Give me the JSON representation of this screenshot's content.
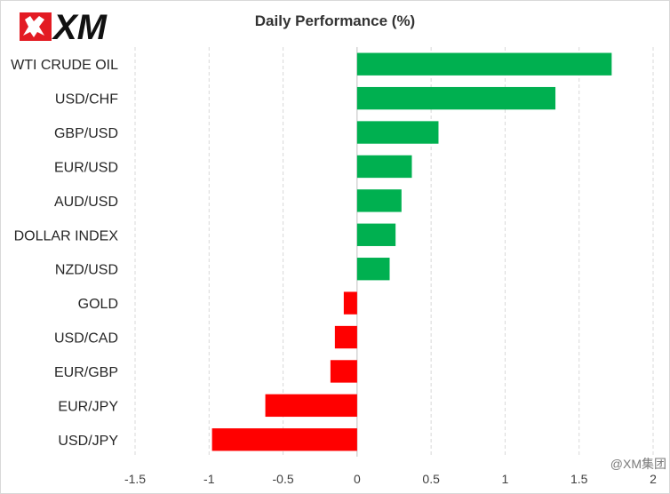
{
  "brand": {
    "logo_text": "XM",
    "colors": {
      "logo_red": "#e31b23",
      "logo_black": "#111111"
    }
  },
  "watermark": "@XM集团",
  "chart_data": {
    "type": "bar",
    "orientation": "horizontal",
    "title": "Daily Performance  (%)",
    "xlabel": "",
    "ylabel": "",
    "categories": [
      "WTI CRUDE OIL",
      "USD/CHF",
      "GBP/USD",
      "EUR/USD",
      "AUD/USD",
      "DOLLAR INDEX",
      "NZD/USD",
      "GOLD",
      "USD/CAD",
      "EUR/GBP",
      "EUR/JPY",
      "USD/JPY"
    ],
    "values": [
      1.72,
      1.34,
      0.55,
      0.37,
      0.3,
      0.26,
      0.22,
      -0.09,
      -0.15,
      -0.18,
      -0.62,
      -0.98
    ],
    "xlim": [
      -1.5,
      2
    ],
    "xticks": [
      -1.5,
      -1,
      -0.5,
      0,
      0.5,
      1,
      1.5,
      2
    ],
    "xtick_labels": [
      "-1.5",
      "-1",
      "-0.5",
      "0",
      "0.5",
      "1",
      "1.5",
      "2"
    ],
    "grid": "vertical dashed",
    "legend": "none",
    "colors": {
      "positive": "#00b050",
      "negative": "#ff0000",
      "grid": "#d9d9d9",
      "zero_line": "#bfbfbf"
    }
  }
}
